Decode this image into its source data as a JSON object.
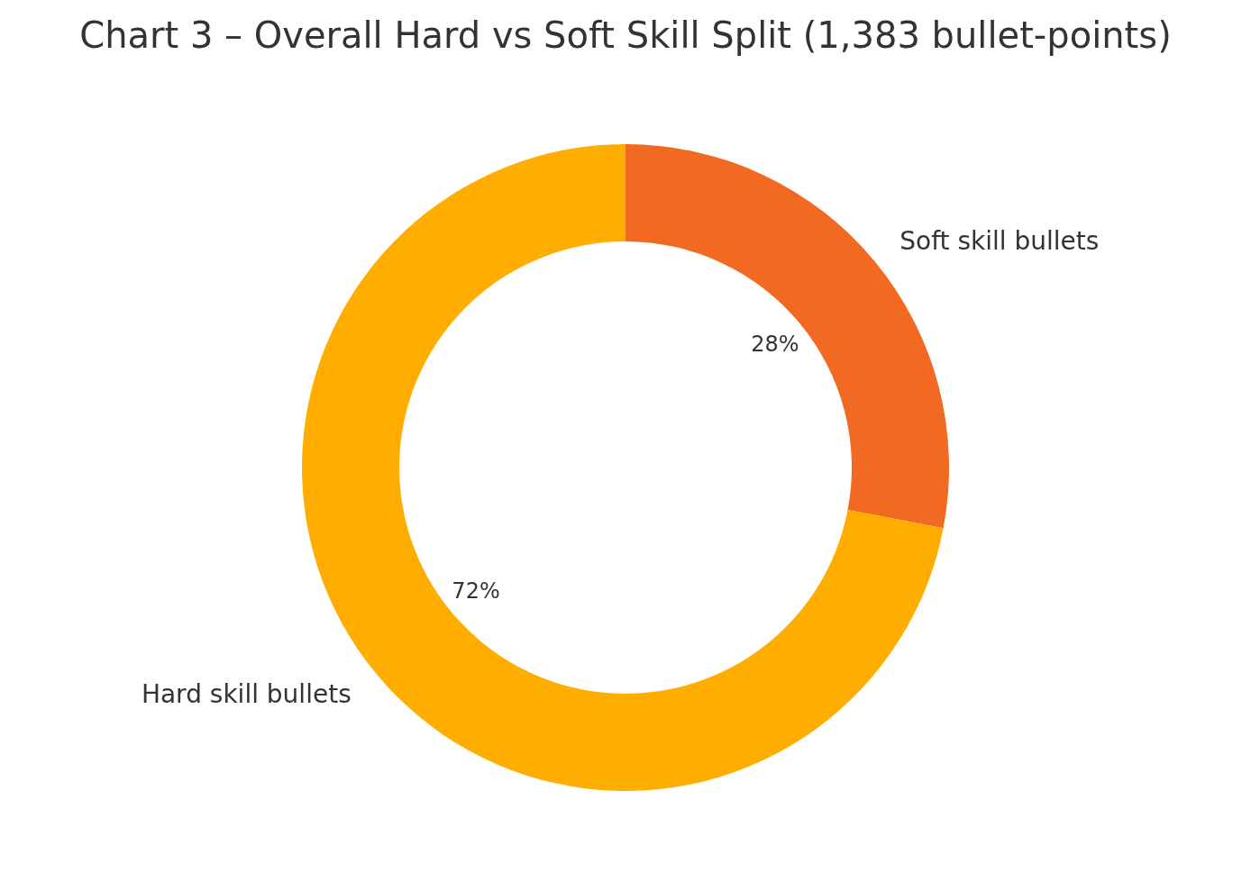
{
  "chart_data": {
    "type": "donut",
    "title": "Chart 3 – Overall Hard vs Soft Skill Split (1,383 bullet-points)",
    "categories": [
      "Soft skill bullets",
      "Hard skill bullets"
    ],
    "values": [
      28,
      72
    ],
    "colors": [
      "#f26a21",
      "#ffae00"
    ],
    "value_labels": [
      "28%",
      "72%"
    ],
    "legend": false
  }
}
